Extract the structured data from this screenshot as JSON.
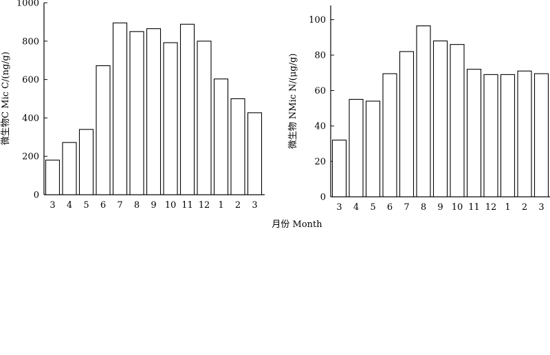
{
  "chart_data": [
    {
      "type": "bar",
      "ylabel": "微生物C Mic C/(ng/g)",
      "ylim": [
        0,
        1000
      ],
      "yticks": [
        0,
        200,
        400,
        600,
        800,
        1000
      ],
      "categories": [
        "3",
        "4",
        "5",
        "6",
        "7",
        "8",
        "9",
        "10",
        "11",
        "12",
        "1",
        "2",
        "3"
      ],
      "values": [
        180,
        272,
        340,
        672,
        895,
        850,
        865,
        792,
        888,
        800,
        603,
        500,
        427
      ],
      "bar_fill": "#ffffff",
      "bar_stroke": "#000000",
      "grid": false
    },
    {
      "type": "bar",
      "ylabel": "微生物 NMic N/(μg/g)",
      "ylim": [
        0,
        108
      ],
      "yticks": [
        0,
        20,
        40,
        60,
        80,
        100
      ],
      "categories": [
        "3",
        "4",
        "5",
        "6",
        "7",
        "8",
        "9",
        "10",
        "11",
        "12",
        "1",
        "2",
        "3"
      ],
      "values": [
        32,
        55,
        54,
        69.5,
        82,
        96.5,
        88,
        86,
        72,
        69,
        69,
        71,
        69.5
      ],
      "bar_fill": "#ffffff",
      "bar_stroke": "#000000",
      "grid": false
    }
  ],
  "shared_xlabel": "月份 Month"
}
